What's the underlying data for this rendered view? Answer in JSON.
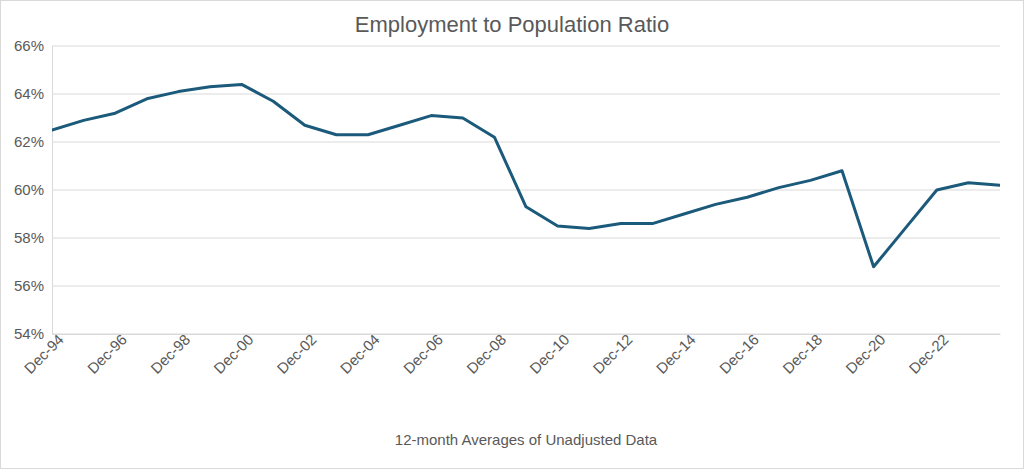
{
  "chart_data": {
    "type": "line",
    "title": "Employment to Population Ratio",
    "x_label": "12-month Averages of Unadjusted Data",
    "categories": [
      "Dec-94",
      null,
      "Dec-96",
      null,
      "Dec-98",
      null,
      "Dec-00",
      null,
      "Dec-02",
      null,
      "Dec-04",
      null,
      "Dec-06",
      null,
      "Dec-08",
      null,
      "Dec-10",
      null,
      "Dec-12",
      null,
      "Dec-14",
      null,
      "Dec-16",
      null,
      "Dec-18",
      null,
      "Dec-20",
      null,
      "Dec-22",
      null,
      null
    ],
    "values": [
      62.5,
      62.9,
      63.2,
      63.8,
      64.1,
      64.3,
      64.4,
      63.7,
      62.7,
      62.3,
      62.3,
      62.7,
      63.1,
      63.0,
      62.2,
      59.3,
      58.5,
      58.4,
      58.6,
      58.6,
      59.0,
      59.4,
      59.7,
      60.1,
      60.4,
      60.8,
      56.8,
      58.4,
      60.0,
      60.3,
      60.2
    ],
    "color": "#1b5a7a",
    "ylim": [
      54,
      66
    ],
    "yticks": [
      {
        "value": 54,
        "label": "54%"
      },
      {
        "value": 56,
        "label": "56%"
      },
      {
        "value": 58,
        "label": "58%"
      },
      {
        "value": 60,
        "label": "60%"
      },
      {
        "value": 62,
        "label": "62%"
      },
      {
        "value": 64,
        "label": "64%"
      },
      {
        "value": 66,
        "label": "66%"
      }
    ],
    "grid": true
  }
}
